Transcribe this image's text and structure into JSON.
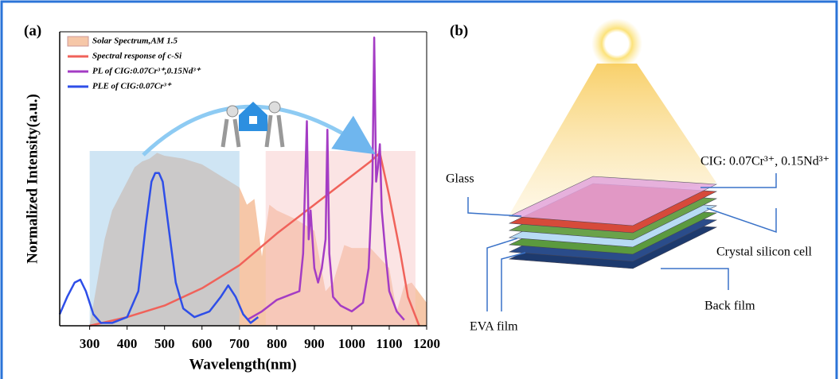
{
  "chart_data": {
    "type": "line",
    "panel_label": "(a)",
    "x_label": "Wavelength(nm)",
    "y_label": "Normalized Intensity(a.u.)",
    "xlim": [
      220,
      1200
    ],
    "ylim": [
      0,
      1.02
    ],
    "xticks": [
      300,
      400,
      500,
      600,
      700,
      800,
      900,
      1000,
      1100,
      1200
    ],
    "legend": "upper left",
    "highlight_bands": [
      {
        "x": [
          300,
          700
        ],
        "color": "#9fcbea"
      },
      {
        "x": [
          770,
          1170
        ],
        "color": "#f7c9c9"
      }
    ],
    "series": [
      {
        "name": "Solar Spectrum,AM 1.5",
        "color": "#f6c7a8",
        "style": "area",
        "x": [
          300,
          320,
          340,
          360,
          380,
          400,
          420,
          440,
          460,
          480,
          500,
          550,
          600,
          650,
          700,
          720,
          740,
          760,
          780,
          800,
          850,
          900,
          930,
          950,
          980,
          1000,
          1050,
          1100,
          1120,
          1140,
          1160,
          1200
        ],
        "values": [
          0,
          0.15,
          0.3,
          0.4,
          0.45,
          0.5,
          0.55,
          0.57,
          0.58,
          0.6,
          0.59,
          0.58,
          0.56,
          0.52,
          0.48,
          0.42,
          0.44,
          0.24,
          0.42,
          0.4,
          0.37,
          0.33,
          0.12,
          0.15,
          0.28,
          0.27,
          0.27,
          0.2,
          0.05,
          0.14,
          0.15,
          0.08
        ]
      },
      {
        "name": "Spectral response of c-Si",
        "color": "#f0625a",
        "style": "line",
        "x": [
          300,
          400,
          500,
          600,
          700,
          800,
          900,
          1000,
          1050,
          1075,
          1100,
          1130,
          1150,
          1180
        ],
        "values": [
          0,
          0.03,
          0.07,
          0.13,
          0.21,
          0.32,
          0.42,
          0.52,
          0.57,
          0.6,
          0.45,
          0.25,
          0.1,
          0
        ]
      },
      {
        "name": "PL of CIG:0.07Cr³⁺,0.15Nd³⁺",
        "color": "#a43cc4",
        "style": "line",
        "x": [
          720,
          760,
          800,
          840,
          860,
          870,
          880,
          885,
          890,
          900,
          910,
          920,
          930,
          935,
          940,
          950,
          970,
          1000,
          1030,
          1045,
          1055,
          1060,
          1065,
          1070,
          1075,
          1080,
          1090,
          1100,
          1120,
          1140
        ],
        "values": [
          0.02,
          0.05,
          0.09,
          0.11,
          0.12,
          0.25,
          0.71,
          0.3,
          0.4,
          0.2,
          0.15,
          0.2,
          0.3,
          0.68,
          0.25,
          0.1,
          0.07,
          0.05,
          0.08,
          0.2,
          0.5,
          1.0,
          0.5,
          0.55,
          0.63,
          0.4,
          0.25,
          0.12,
          0.05,
          0.02
        ]
      },
      {
        "name": "PLE of CIG:0.07Cr³⁺",
        "color": "#2e4ee8",
        "style": "line",
        "x": [
          220,
          240,
          260,
          275,
          290,
          310,
          330,
          360,
          400,
          430,
          450,
          465,
          475,
          485,
          495,
          510,
          530,
          550,
          580,
          620,
          650,
          670,
          690,
          710,
          730,
          750
        ],
        "values": [
          0.04,
          0.1,
          0.15,
          0.16,
          0.12,
          0.04,
          0.01,
          0.01,
          0.03,
          0.12,
          0.35,
          0.5,
          0.53,
          0.53,
          0.5,
          0.35,
          0.15,
          0.06,
          0.03,
          0.05,
          0.1,
          0.14,
          0.1,
          0.04,
          0.01,
          0.03
        ]
      }
    ]
  },
  "diagram": {
    "panel_label": "(b)",
    "labels": {
      "glass": "Glass",
      "cig": "CIG: 0.07Cr³⁺, 0.15Nd³⁺",
      "cell": "Crystal silicon cell",
      "back": "Back film",
      "eva": "EVA film"
    }
  }
}
